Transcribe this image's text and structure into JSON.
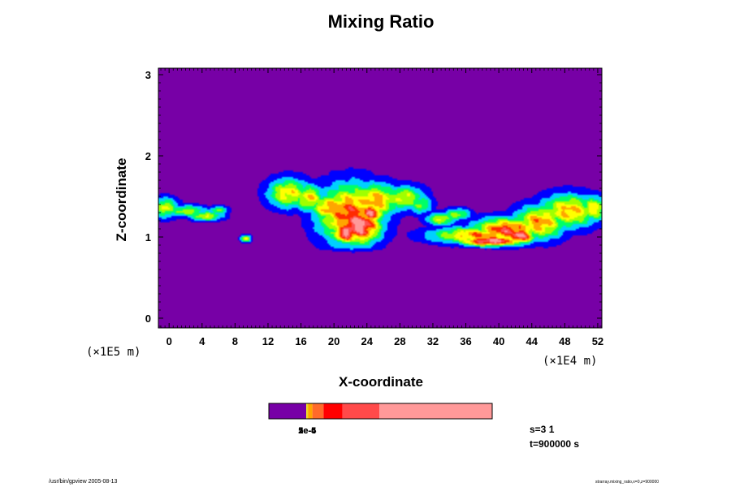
{
  "chart_data": {
    "type": "heatmap",
    "title": "Mixing Ratio",
    "xlabel": "X-coordinate",
    "ylabel": "Z-coordinate",
    "x_unit": "(×1E4 m)",
    "y_unit": "(×1E5 m)",
    "xlim": [
      -1.3,
      52.5
    ],
    "ylim": [
      -0.12,
      3.08
    ],
    "x_ticks": [
      "0",
      "4",
      "8",
      "12",
      "16",
      "20",
      "24",
      "28",
      "32",
      "36",
      "40",
      "44",
      "48",
      "52"
    ],
    "y_ticks": [
      "0",
      "1",
      "2",
      "3"
    ],
    "background_color": "#7700a6",
    "colormap": [
      "#7700a6",
      "#0000ff",
      "#00d0ff",
      "#00ff66",
      "#a0ff00",
      "#ffff00",
      "#ffa500",
      "#ff2a00",
      "#ff5050",
      "#ff9999"
    ],
    "colorbar": {
      "segments": [
        {
          "color": "#7700a6",
          "start": 0,
          "end": 0.168
        },
        {
          "color": "#ffff00",
          "start": 0.168,
          "end": 0.172
        },
        {
          "color": "#e6c800",
          "start": 0.172,
          "end": 0.176
        },
        {
          "color": "#ffa500",
          "start": 0.176,
          "end": 0.195
        },
        {
          "color": "#ff6a2a",
          "start": 0.195,
          "end": 0.245
        },
        {
          "color": "#ff0000",
          "start": 0.245,
          "end": 0.33
        },
        {
          "color": "#ff4a4a",
          "start": 0.33,
          "end": 0.495
        },
        {
          "color": "#ff9999",
          "start": 0.495,
          "end": 1
        }
      ],
      "labels": [
        "1e-6",
        "2e-5",
        "5e-4"
      ]
    },
    "blobs": [
      {
        "x": -0.5,
        "z": 1.36,
        "rx": 1.6,
        "rz": 0.12,
        "v": 0.45
      },
      {
        "x": 2.2,
        "z": 1.32,
        "rx": 2.4,
        "rz": 0.07,
        "v": 0.4
      },
      {
        "x": 4.5,
        "z": 1.26,
        "rx": 2.0,
        "rz": 0.06,
        "v": 0.45
      },
      {
        "x": 6.0,
        "z": 1.33,
        "rx": 1.2,
        "rz": 0.05,
        "v": 0.35
      },
      {
        "x": 9.3,
        "z": 0.98,
        "rx": 0.6,
        "rz": 0.04,
        "v": 0.55
      },
      {
        "x": 14.5,
        "z": 1.54,
        "rx": 2.5,
        "rz": 0.18,
        "v": 0.5
      },
      {
        "x": 17.0,
        "z": 1.48,
        "rx": 1.8,
        "rz": 0.16,
        "v": 0.52
      },
      {
        "x": 19.5,
        "z": 1.36,
        "rx": 2.2,
        "rz": 0.16,
        "v": 0.6
      },
      {
        "x": 22.0,
        "z": 1.28,
        "rx": 3.8,
        "rz": 0.35,
        "v": 0.68
      },
      {
        "x": 25.0,
        "z": 1.45,
        "rx": 3.0,
        "rz": 0.2,
        "v": 0.58
      },
      {
        "x": 28.5,
        "z": 1.48,
        "rx": 2.5,
        "rz": 0.15,
        "v": 0.45
      },
      {
        "x": 30.5,
        "z": 1.4,
        "rx": 1.5,
        "rz": 0.12,
        "v": 0.35
      },
      {
        "x": 23.0,
        "z": 1.15,
        "rx": 2.6,
        "rz": 0.22,
        "v": 0.9
      },
      {
        "x": 21.5,
        "z": 1.05,
        "rx": 1.6,
        "rz": 0.12,
        "v": 0.85
      },
      {
        "x": 24.5,
        "z": 1.3,
        "rx": 1.5,
        "rz": 0.12,
        "v": 0.8
      },
      {
        "x": 33.0,
        "z": 1.22,
        "rx": 1.8,
        "rz": 0.08,
        "v": 0.45
      },
      {
        "x": 35.0,
        "z": 1.28,
        "rx": 1.6,
        "rz": 0.07,
        "v": 0.4
      },
      {
        "x": 37.5,
        "z": 1.02,
        "rx": 5.5,
        "rz": 0.1,
        "v": 0.6
      },
      {
        "x": 41.0,
        "z": 1.08,
        "rx": 4.0,
        "rz": 0.15,
        "v": 0.72
      },
      {
        "x": 39.0,
        "z": 0.95,
        "rx": 3.5,
        "rz": 0.06,
        "v": 0.9
      },
      {
        "x": 42.5,
        "z": 1.02,
        "rx": 1.8,
        "rz": 0.1,
        "v": 0.85
      },
      {
        "x": 45.0,
        "z": 1.18,
        "rx": 3.0,
        "rz": 0.2,
        "v": 0.6
      },
      {
        "x": 48.5,
        "z": 1.32,
        "rx": 3.5,
        "rz": 0.2,
        "v": 0.55
      },
      {
        "x": 51.5,
        "z": 1.35,
        "rx": 1.8,
        "rz": 0.15,
        "v": 0.5
      }
    ]
  },
  "info": {
    "s": "s=3 1",
    "t": "t=900000 s"
  },
  "footer": {
    "left": "/usr/bin/gpview 2005-08-13",
    "right": "strarray.mixing_ratio,x=0,z=900000"
  }
}
